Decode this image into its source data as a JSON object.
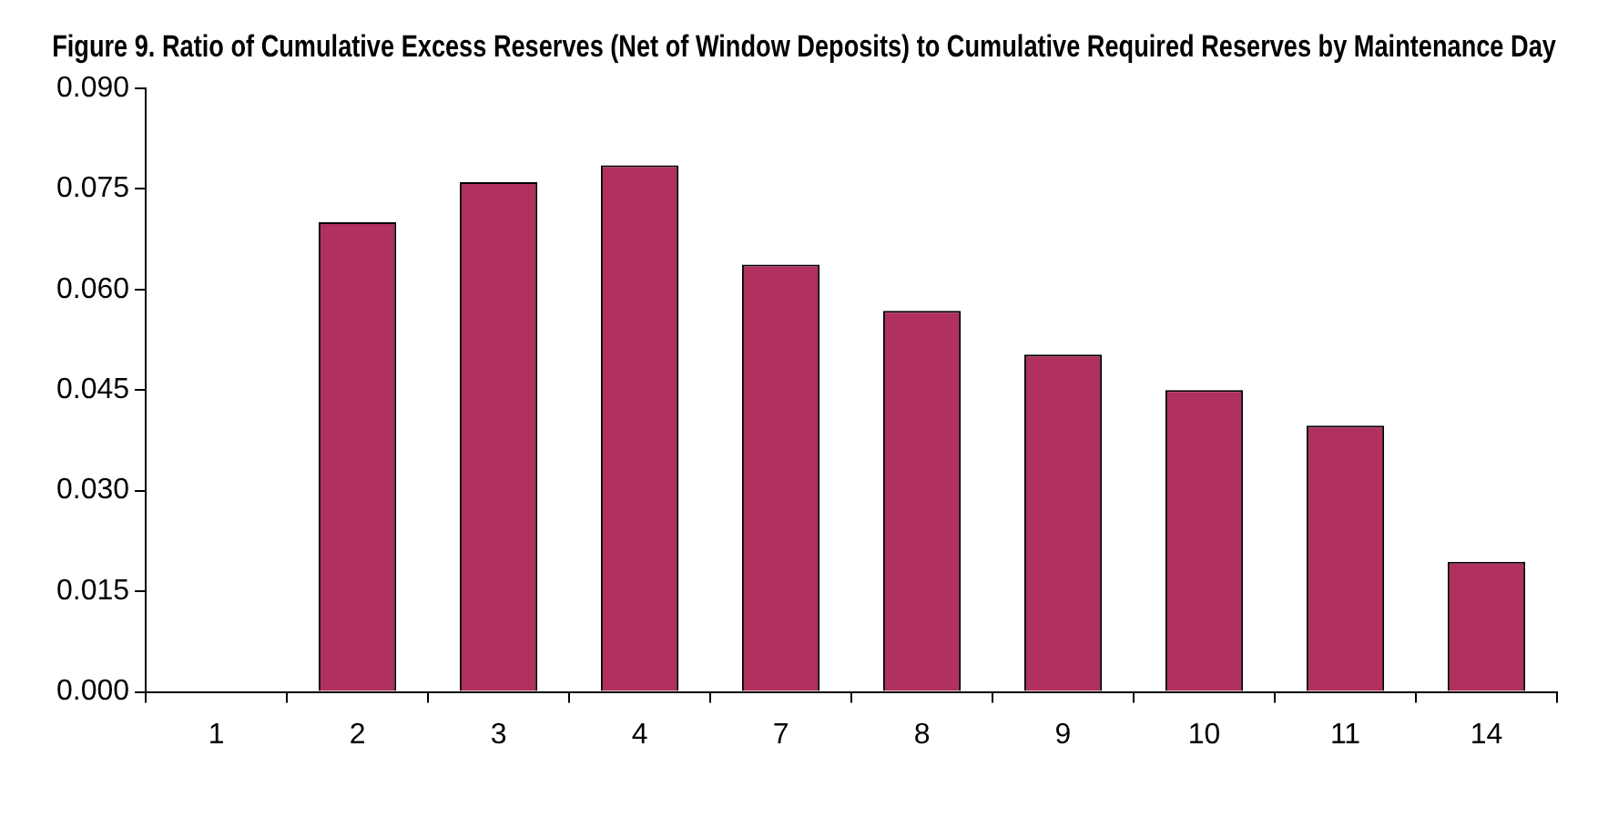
{
  "chart_data": {
    "type": "bar",
    "title": "Figure 9. Ratio of Cumulative Excess Reserves (Net of Window Deposits) to Cumulative Required Reserves by Maintenance Day",
    "categories": [
      "1",
      "2",
      "3",
      "4",
      "7",
      "8",
      "9",
      "10",
      "11",
      "14"
    ],
    "values": [
      0,
      0.07,
      0.076,
      0.0785,
      0.0637,
      0.0568,
      0.0503,
      0.045,
      0.0397,
      0.0194
    ],
    "color": "#b03060",
    "ylim": [
      0,
      0.09
    ],
    "yticks": [
      {
        "value": 0,
        "label": "0.000"
      },
      {
        "value": 0.015,
        "label": "0.015"
      },
      {
        "value": 0.03,
        "label": "0.030"
      },
      {
        "value": 0.045,
        "label": "0.045"
      },
      {
        "value": 0.06,
        "label": "0.060"
      },
      {
        "value": 0.075,
        "label": "0.075"
      },
      {
        "value": 0.09,
        "label": "0.090"
      }
    ],
    "grid": false,
    "legend": false
  }
}
